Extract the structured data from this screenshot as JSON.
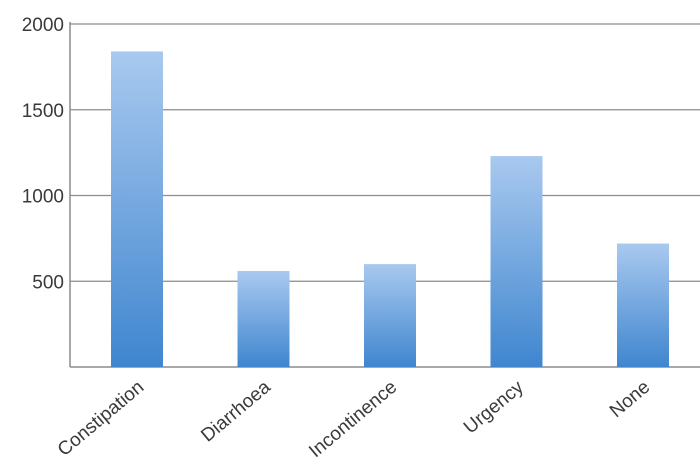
{
  "chart_data": {
    "type": "bar",
    "categories": [
      "Constipation",
      "Diarrhoea",
      "Incontinence",
      "Urgency",
      "None"
    ],
    "values": [
      1840,
      560,
      600,
      1230,
      720
    ],
    "yticks": [
      500,
      1000,
      1500,
      2000
    ],
    "ylim": [
      0,
      2000
    ],
    "title": "",
    "xlabel": "",
    "ylabel": "",
    "grid": true,
    "legend": "none",
    "colors": {
      "bar_top": "#a9c9ef",
      "bar_bottom": "#3f86cf",
      "grid": "#8c8c8c",
      "text": "#3a3a3a"
    }
  }
}
